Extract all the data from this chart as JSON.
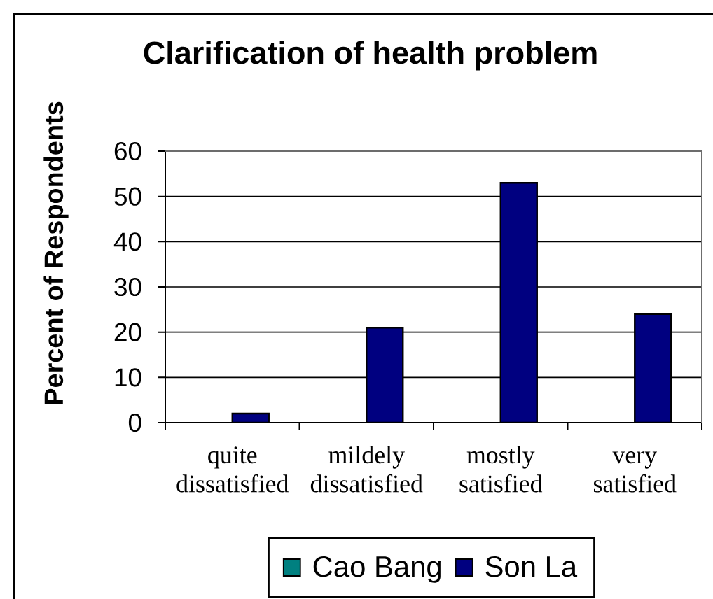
{
  "chart_data": {
    "type": "bar",
    "title": "Clarification of health problem",
    "ylabel": "Percent of Respondents",
    "categories": [
      "quite dissatisfied",
      "mildely dissatisfied",
      "mostly satisfied",
      "very satisfied"
    ],
    "series": [
      {
        "name": "Cao Bang",
        "color": "#008080",
        "values": [
          null,
          null,
          null,
          null
        ]
      },
      {
        "name": "Son La",
        "color": "#000080",
        "values": [
          2,
          21,
          53,
          24
        ]
      }
    ],
    "ylim": [
      0,
      60
    ],
    "yticks": [
      0,
      10,
      20,
      30,
      40,
      50,
      60
    ],
    "grid": "y",
    "legend": "bottom"
  }
}
